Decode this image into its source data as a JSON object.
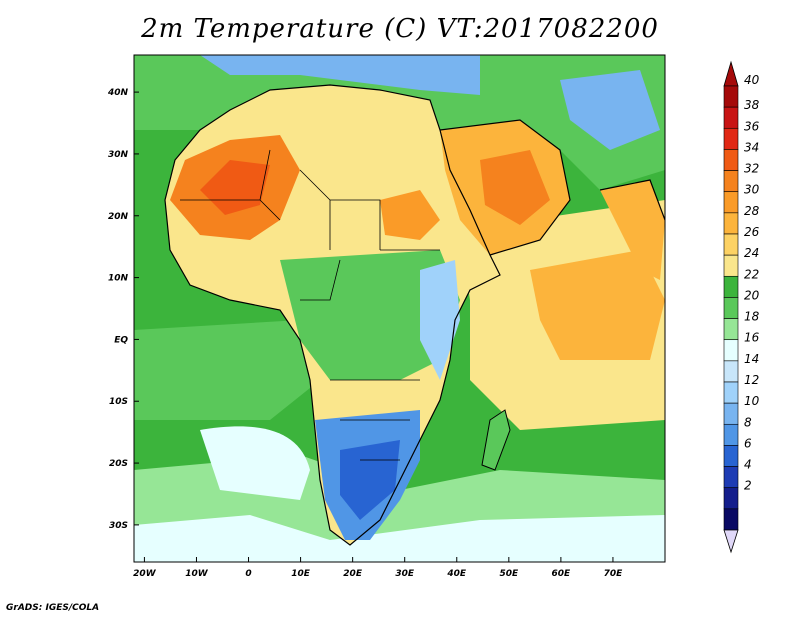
{
  "title": "2m Temperature (C) VT:2017082200",
  "credit": "GrADS: IGES/COLA",
  "map": {
    "lon_range": [
      -22,
      80
    ],
    "lat_range": [
      -36,
      46
    ],
    "x_ticks": [
      "20W",
      "10W",
      "0",
      "10E",
      "20E",
      "30E",
      "40E",
      "50E",
      "60E",
      "70E"
    ],
    "y_ticks": [
      "40N",
      "30N",
      "20N",
      "10N",
      "EQ",
      "10S",
      "20S",
      "30S"
    ],
    "x_tick_values": [
      -20,
      -10,
      0,
      10,
      20,
      30,
      40,
      50,
      60,
      70
    ],
    "y_tick_values": [
      40,
      30,
      20,
      10,
      0,
      -10,
      -20,
      -30
    ]
  },
  "colorbar": {
    "labels": [
      "40",
      "38",
      "36",
      "34",
      "32",
      "30",
      "28",
      "26",
      "24",
      "22",
      "20",
      "18",
      "16",
      "14",
      "12",
      "10",
      "8",
      "6",
      "4",
      "2"
    ],
    "colors": [
      "#a50a0a",
      "#c81414",
      "#e12814",
      "#f05a14",
      "#f5821e",
      "#fa9b28",
      "#fcb43c",
      "#fdd264",
      "#fae68c",
      "#3cb43c",
      "#5ac85a",
      "#96e696",
      "#e6ffff",
      "#c8e6fa",
      "#a0d2fa",
      "#78b4f0",
      "#5096e6",
      "#2864d2",
      "#1e3cb4",
      "#141e8c",
      "#0a0a64"
    ],
    "top_arrow_color": "#a50a0a",
    "bottom_arrow_color": "#e0d8f8"
  }
}
